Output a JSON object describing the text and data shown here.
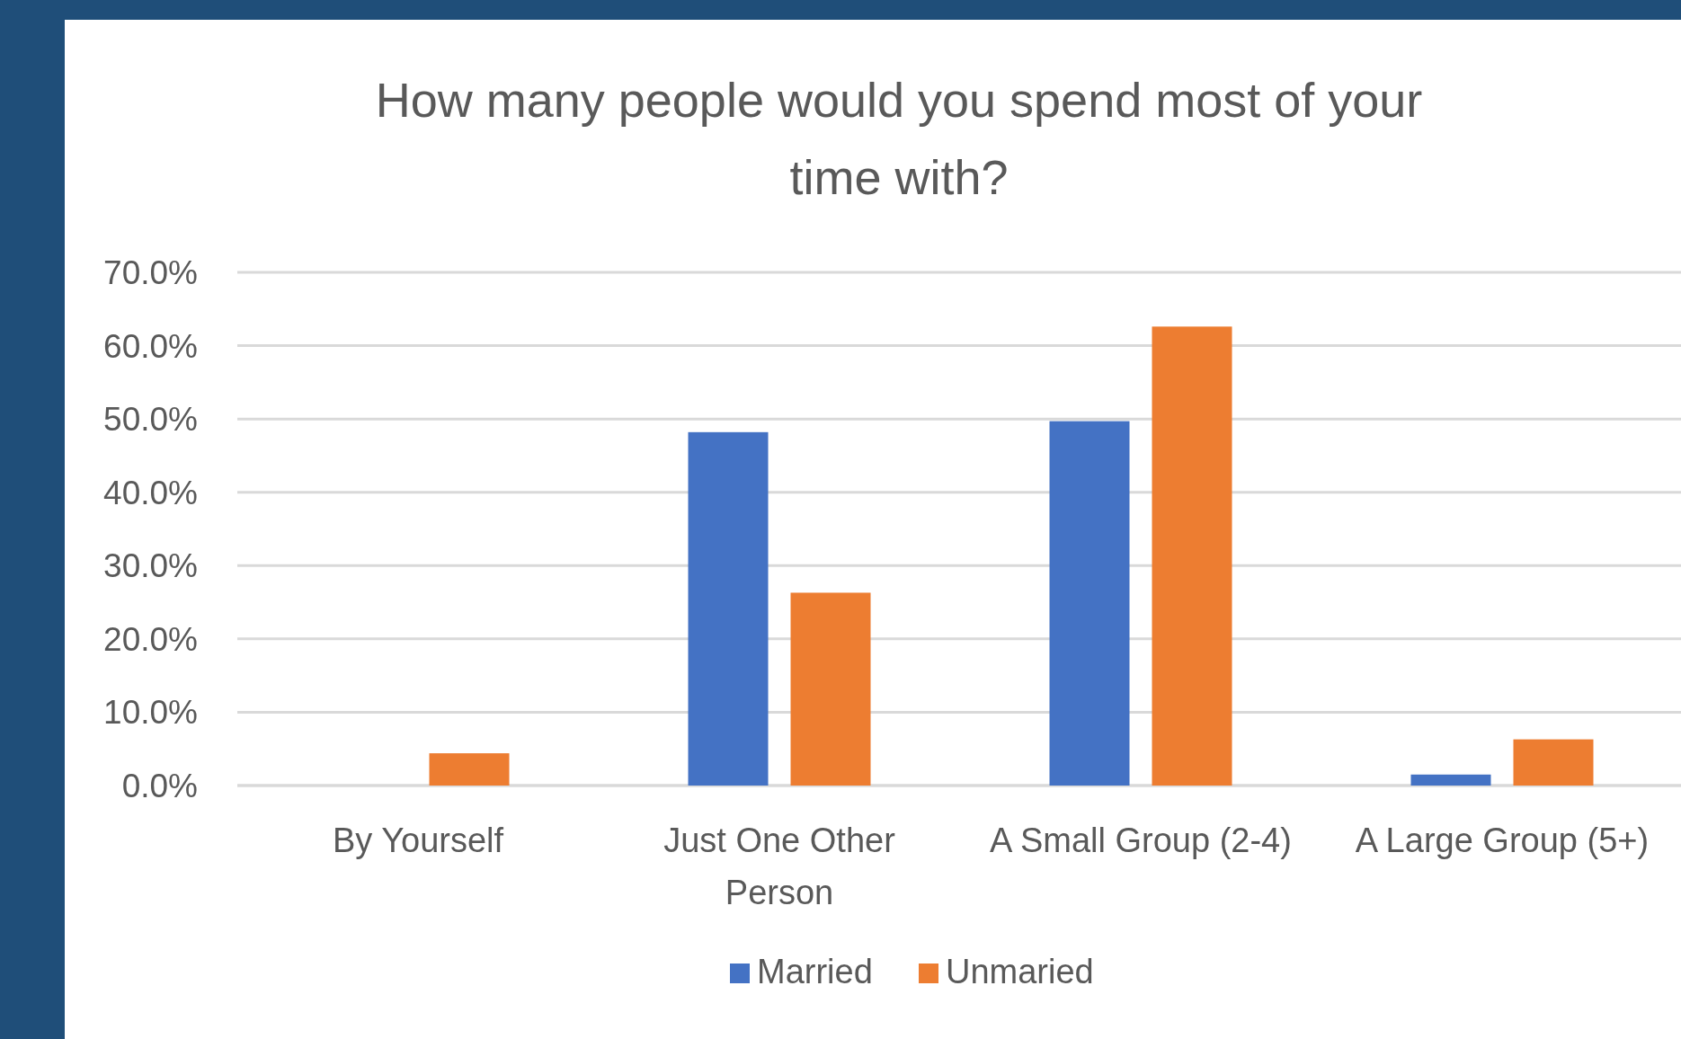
{
  "chart_data": {
    "type": "bar",
    "title": "How many people would you spend most of your time with?",
    "categories": [
      "By Yourself",
      "Just One Other Person",
      "A Small Group (2-4)",
      "A Large Group (5+)"
    ],
    "series": [
      {
        "name": "Married",
        "color": "#4472c4",
        "values": [
          0,
          48.2,
          49.7,
          1.5
        ]
      },
      {
        "name": "Unmaried",
        "color": "#ed7d31",
        "values": [
          4.4,
          26.3,
          62.6,
          6.3
        ]
      }
    ],
    "ylim": [
      0,
      70
    ],
    "yticks": [
      {
        "value": 0,
        "label": "0.0%"
      },
      {
        "value": 10,
        "label": "10.0%"
      },
      {
        "value": 20,
        "label": "20.0%"
      },
      {
        "value": 30,
        "label": "30.0%"
      },
      {
        "value": 40,
        "label": "40.0%"
      },
      {
        "value": 50,
        "label": "50.0%"
      },
      {
        "value": 60,
        "label": "60.0%"
      },
      {
        "value": 70,
        "label": "70.0%"
      }
    ],
    "grid": "y",
    "legend": "bottom"
  }
}
